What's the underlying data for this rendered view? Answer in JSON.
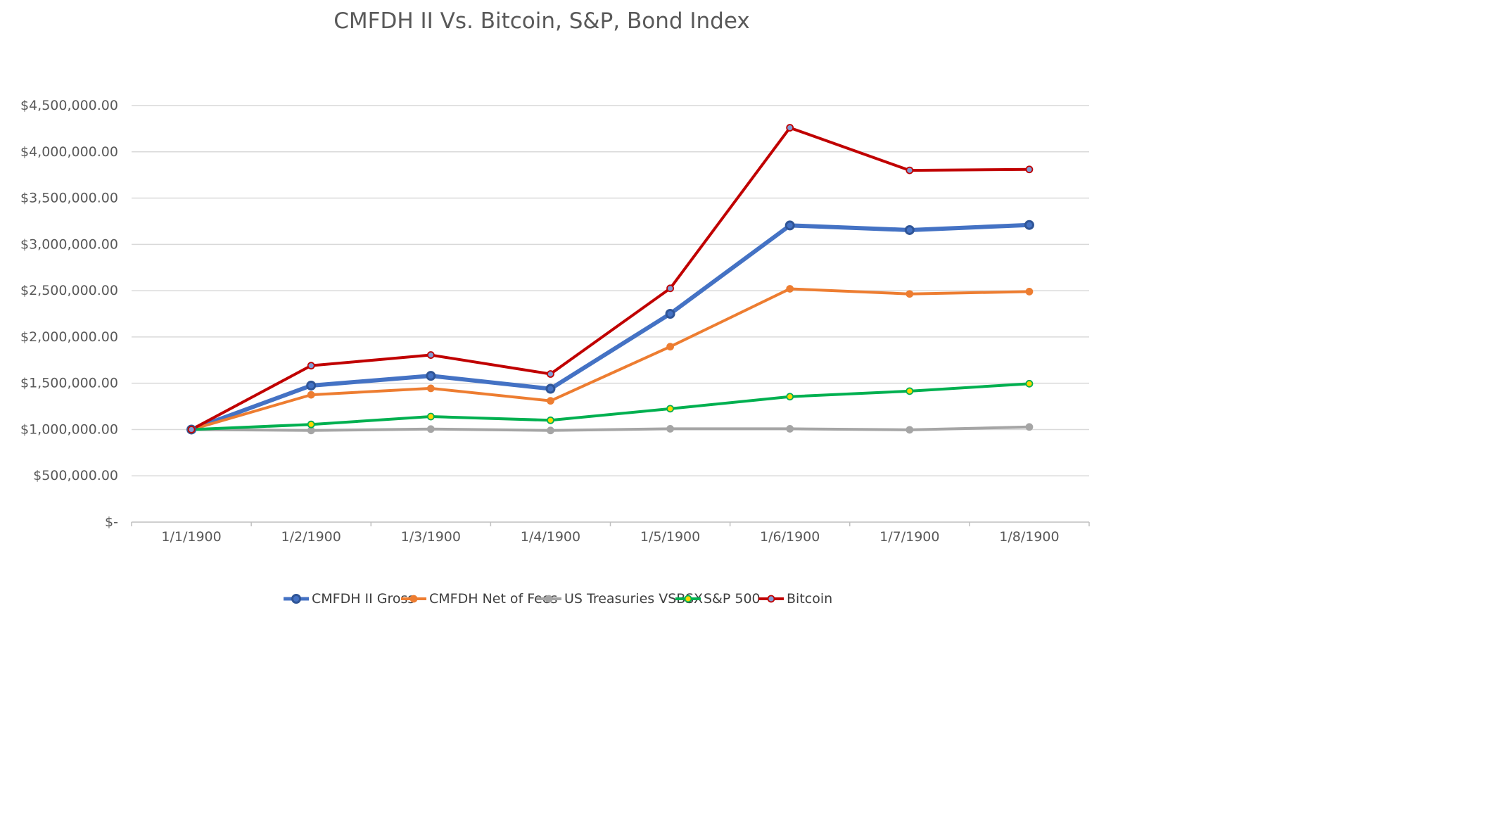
{
  "chart_data": {
    "type": "line",
    "title": "CMFDH II Vs. Bitcoin, S&P, Bond Index",
    "xlabel": "",
    "ylabel": "",
    "categories": [
      "1/1/1900",
      "1/2/1900",
      "1/3/1900",
      "1/4/1900",
      "1/5/1900",
      "1/6/1900",
      "1/7/1900",
      "1/8/1900"
    ],
    "ylim": [
      0,
      4500000
    ],
    "yticks": [
      0,
      500000,
      1000000,
      1500000,
      2000000,
      2500000,
      3000000,
      3500000,
      4000000,
      4500000
    ],
    "ytick_labels": [
      "$-",
      "$500,000.00",
      "$1,000,000.00",
      "$1,500,000.00",
      "$2,000,000.00",
      "$2,500,000.00",
      "$3,000,000.00",
      "$3,500,000.00",
      "$4,000,000.00",
      "$4,500,000.00"
    ],
    "grid": true,
    "legend_position": "bottom",
    "series": [
      {
        "name": "CMFDH II Gross",
        "color": "#4472C4",
        "marker_fill": "#4472C4",
        "values": [
          1000000,
          1475000,
          1580000,
          1440000,
          2250000,
          3205000,
          3155000,
          3210000
        ]
      },
      {
        "name": "CMFDH Net of Fees",
        "color": "#ED7D31",
        "marker_fill": "#ED7D31",
        "values": [
          1000000,
          1375000,
          1445000,
          1310000,
          1895000,
          2520000,
          2465000,
          2490000
        ]
      },
      {
        "name": "US Treasuries VSBSX",
        "color": "#A5A5A5",
        "marker_fill": "#A5A5A5",
        "values": [
          1000000,
          990000,
          1005000,
          990000,
          1008000,
          1008000,
          997000,
          1028000
        ]
      },
      {
        "name": "S&P 500",
        "color": "#00B050",
        "marker_fill": "#FFD700",
        "values": [
          1000000,
          1055000,
          1140000,
          1100000,
          1225000,
          1355000,
          1415000,
          1495000
        ]
      },
      {
        "name": "Bitcoin",
        "color": "#C00000",
        "marker_fill": "#7F9ED6",
        "values": [
          1000000,
          1690000,
          1805000,
          1600000,
          2525000,
          4260000,
          3800000,
          3810000
        ]
      }
    ]
  }
}
